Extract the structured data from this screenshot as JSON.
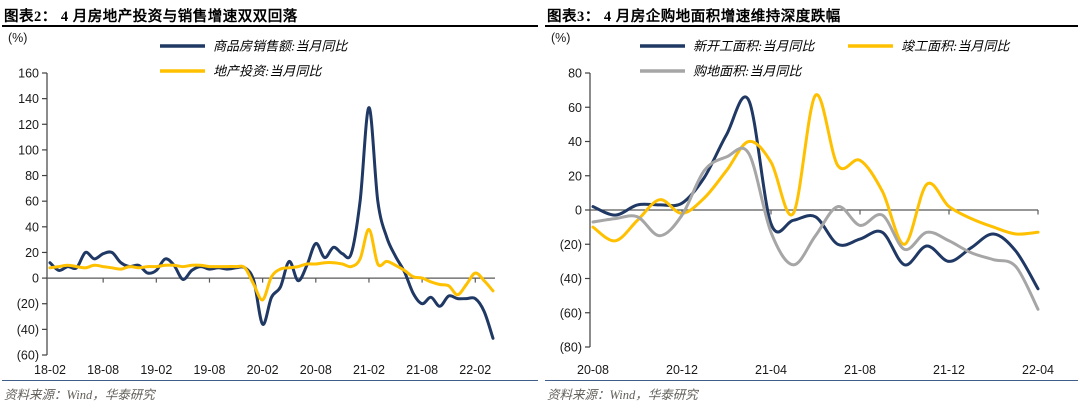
{
  "colors": {
    "navy": "#1F3864",
    "gold": "#FFC000",
    "gray": "#A6A6A6",
    "axis": "#404040",
    "zero_line": "#595959",
    "title_rule": "#000000",
    "source_rule": "#3F5E8C",
    "source_text": "#63605B"
  },
  "charts": [
    {
      "id": "chart2",
      "title": "图表2：  4 月房地产投资与销售增速双双回落",
      "unit": "(%)",
      "source": "资料来源：Wind，华泰研究",
      "chart_data": {
        "type": "line",
        "grid": false,
        "legend_position": "top",
        "ylim": [
          -60,
          160
        ],
        "ytick_step": 20,
        "x": [
          "18-02",
          "18-03",
          "18-04",
          "18-05",
          "18-06",
          "18-07",
          "18-08",
          "18-09",
          "18-10",
          "18-11",
          "18-12",
          "19-01",
          "19-02",
          "19-03",
          "19-04",
          "19-05",
          "19-06",
          "19-07",
          "19-08",
          "19-09",
          "19-10",
          "19-11",
          "19-12",
          "20-01",
          "20-02",
          "20-03",
          "20-04",
          "20-05",
          "20-06",
          "20-07",
          "20-08",
          "20-09",
          "20-10",
          "20-11",
          "20-12",
          "21-01",
          "21-02",
          "21-03",
          "21-04",
          "21-05",
          "21-06",
          "21-07",
          "21-08",
          "21-09",
          "21-10",
          "21-11",
          "21-12",
          "22-01",
          "22-02",
          "22-03",
          "22-04"
        ],
        "xticks_shown": [
          "18-02",
          "18-08",
          "19-02",
          "19-08",
          "20-02",
          "20-08",
          "21-02",
          "21-08",
          "22-02"
        ],
        "series": [
          {
            "name": "商品房销售额:当月同比",
            "color": "#1F3864",
            "values": [
              12,
              6,
              9,
              8,
              20,
              15,
              19,
              20,
              12,
              9,
              10,
              4,
              6,
              15,
              10,
              -1,
              6,
              9,
              7,
              8,
              7,
              8,
              8,
              -2,
              -36,
              -15,
              -7,
              13,
              -2,
              10,
              27,
              16,
              24,
              19,
              19,
              60,
              133,
              60,
              32,
              17,
              5,
              -12,
              -20,
              -15,
              -22,
              -14,
              -16,
              -16,
              -16,
              -26,
              -47
            ]
          },
          {
            "name": "地产投资:当月同比",
            "color": "#FFC000",
            "values": [
              8,
              9,
              10,
              9,
              8,
              10,
              9,
              8,
              7,
              9,
              8,
              9,
              9,
              10,
              10,
              9,
              10,
              10,
              9,
              9,
              9,
              9,
              8,
              -5,
              -17,
              1,
              7,
              8,
              9,
              11,
              11,
              12,
              12,
              11,
              9,
              15,
              38,
              11,
              13,
              10,
              6,
              1,
              0,
              -3,
              -5,
              -6,
              -13,
              -5,
              4,
              -2,
              -10
            ]
          }
        ]
      }
    },
    {
      "id": "chart3",
      "title": "图表3：  4 月房企购地面积增速维持深度跌幅",
      "unit": "(%)",
      "source": "资料来源：Wind，华泰研究",
      "chart_data": {
        "type": "line",
        "grid": false,
        "legend_position": "top",
        "ylim": [
          -80,
          80
        ],
        "ytick_step": 20,
        "x": [
          "20-08",
          "20-09",
          "20-10",
          "20-11",
          "20-12",
          "21-01",
          "21-02",
          "21-03",
          "21-04",
          "21-05",
          "21-06",
          "21-07",
          "21-08",
          "21-09",
          "21-10",
          "21-11",
          "21-12",
          "22-01",
          "22-02",
          "22-03",
          "22-04"
        ],
        "xticks_shown": [
          "20-08",
          "20-12",
          "21-04",
          "21-08",
          "21-12",
          "22-04"
        ],
        "series": [
          {
            "name": "新开工面积:当月同比",
            "color": "#1F3864",
            "values": [
              2,
              -3,
              3,
              3,
              4,
              19,
              44,
              64,
              -8,
              -6,
              -4,
              -20,
              -17,
              -13,
              -32,
              -21,
              -30,
              -22,
              -14,
              -24,
              -46
            ]
          },
          {
            "name": "竣工面积:当月同比",
            "color": "#FFC000",
            "values": [
              -10,
              -18,
              -6,
              6,
              -2,
              7,
              23,
              40,
              28,
              -2,
              67,
              26,
              29,
              11,
              -20,
              15,
              2,
              -5,
              -10,
              -14,
              -13
            ]
          },
          {
            "name": "购地面积:当月同比",
            "color": "#A6A6A6",
            "values": [
              -7,
              -5,
              -4,
              -15,
              -3,
              23,
              31,
              33,
              -13,
              -32,
              -15,
              2,
              -9,
              -3,
              -23,
              -13,
              -18,
              -25,
              -29,
              -33,
              -58
            ]
          }
        ]
      }
    }
  ]
}
